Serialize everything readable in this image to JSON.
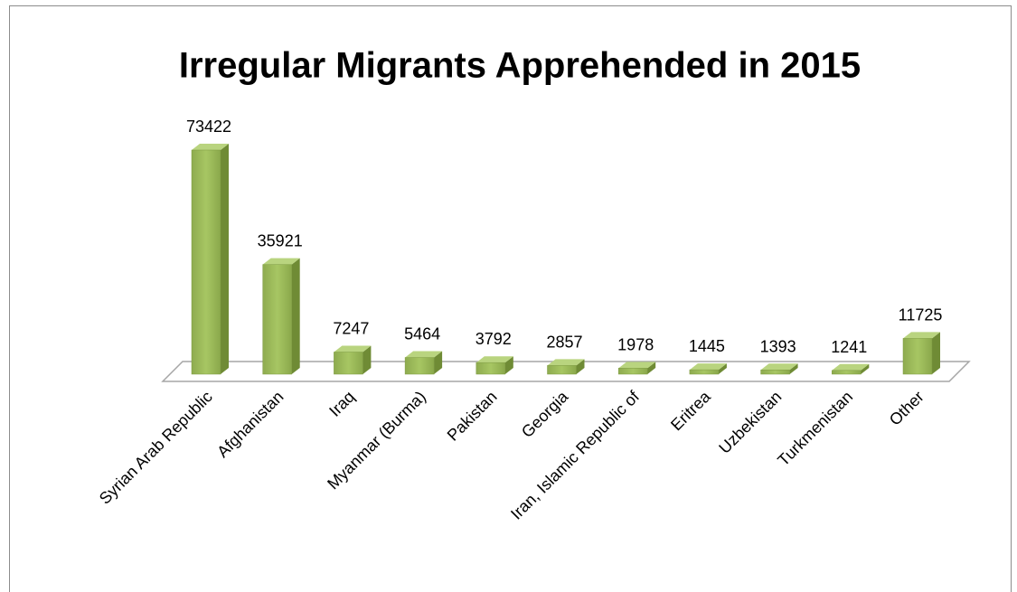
{
  "chart_data": {
    "type": "bar3d",
    "title": "Irregular Migrants Apprehended in 2015",
    "categories": [
      "Syrian Arab Republic",
      "Afghanistan",
      "Iraq",
      "Myanmar (Burma)",
      "Pakistan",
      "Georgia",
      "Iran, Islamic Republic of",
      "Eritrea",
      "Uzbekistan",
      "Turkmenistan",
      "Other"
    ],
    "values": [
      73422,
      35921,
      7247,
      5464,
      3792,
      2857,
      1978,
      1445,
      1393,
      1241,
      11725
    ],
    "color": "#9bbb59"
  }
}
